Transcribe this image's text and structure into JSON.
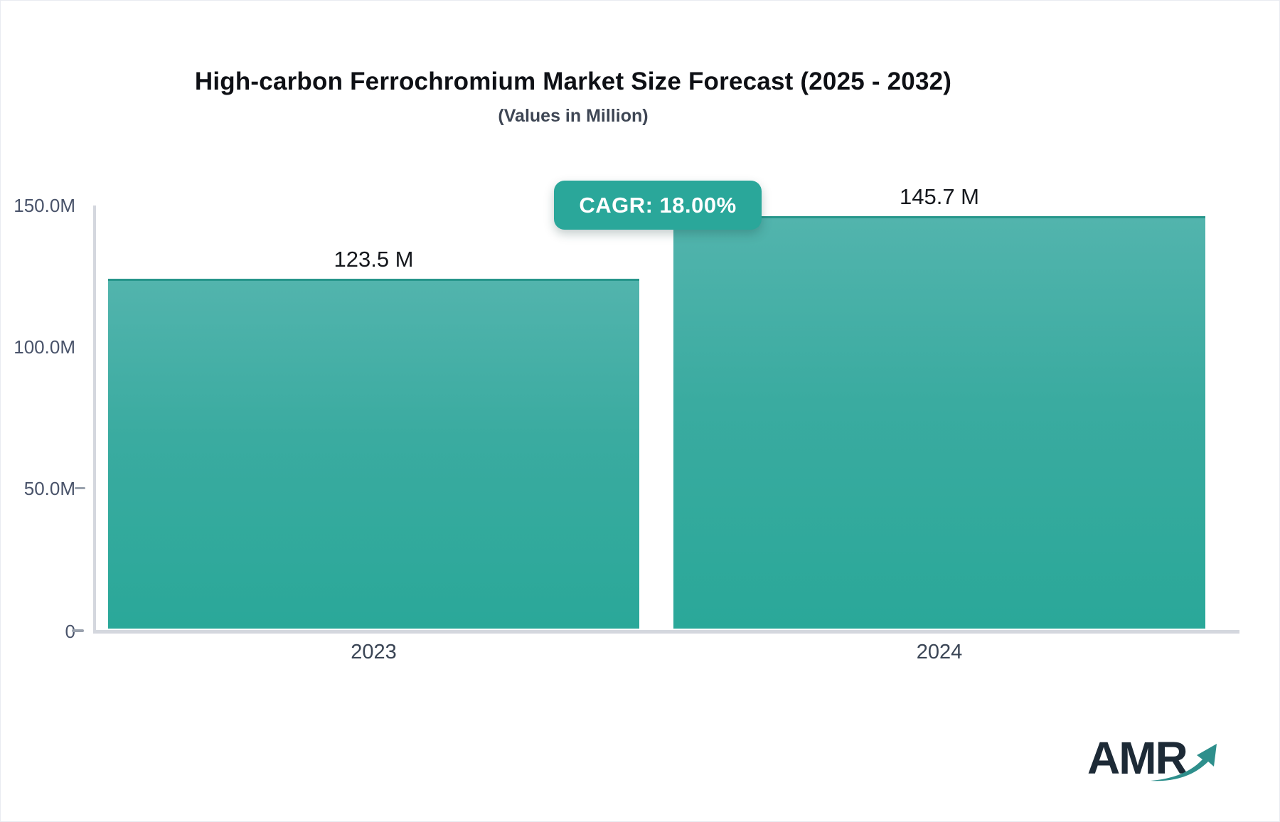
{
  "header": {
    "title": "High-carbon Ferrochromium Market Size Forecast (2025 - 2032)",
    "subtitle": "(Values in Million)"
  },
  "badge": {
    "label": "CAGR: 18.00%"
  },
  "logo": {
    "text": "AMR"
  },
  "colors": {
    "accent_teal": "#2aa79a",
    "bar_gradient_top": "#52b4ad",
    "bar_gradient_bottom": "#2aa899",
    "bar_top_border": "#27968b",
    "axis_line": "#d4d7de",
    "logo_text": "#1d2a36",
    "logo_arrow": "#2e8f8c"
  },
  "chart_data": {
    "type": "bar",
    "title": "High-carbon Ferrochromium Market Size Forecast (2025 - 2032)",
    "subtitle": "(Values in Million)",
    "categories": [
      "2023",
      "2024"
    ],
    "values": [
      123.5,
      145.7
    ],
    "value_labels": [
      "123.5 M",
      "145.7 M"
    ],
    "unit": "Million",
    "ylim": [
      0,
      150
    ],
    "ytick_labels": [
      "150.0M",
      "100.0M",
      "50.0M",
      "0"
    ],
    "grid": false,
    "legend": false,
    "annotation": "CAGR: 18.00%"
  }
}
